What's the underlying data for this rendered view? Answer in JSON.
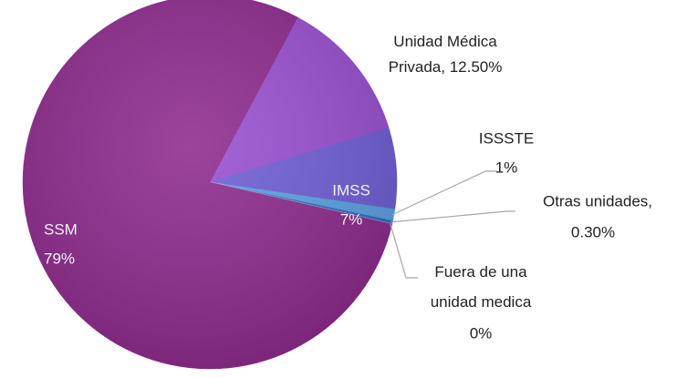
{
  "chart_data": {
    "type": "pie",
    "categories": [
      "SSM",
      "Unidad Médica Privada,",
      "IMSS",
      "ISSSTE",
      "Otras unidades,",
      "Fuera de una unidad medica"
    ],
    "values": [
      79,
      12.5,
      7,
      1,
      0.3,
      0
    ],
    "value_labels": [
      "79%",
      "12.50%",
      "7%",
      "1%",
      "0.30%",
      "0%"
    ],
    "colors": [
      "#8e2a8e",
      "#9a50d2",
      "#6f5fd6",
      "#5ba3e4",
      "#2f6fc0",
      "#b4b4e6"
    ]
  }
}
